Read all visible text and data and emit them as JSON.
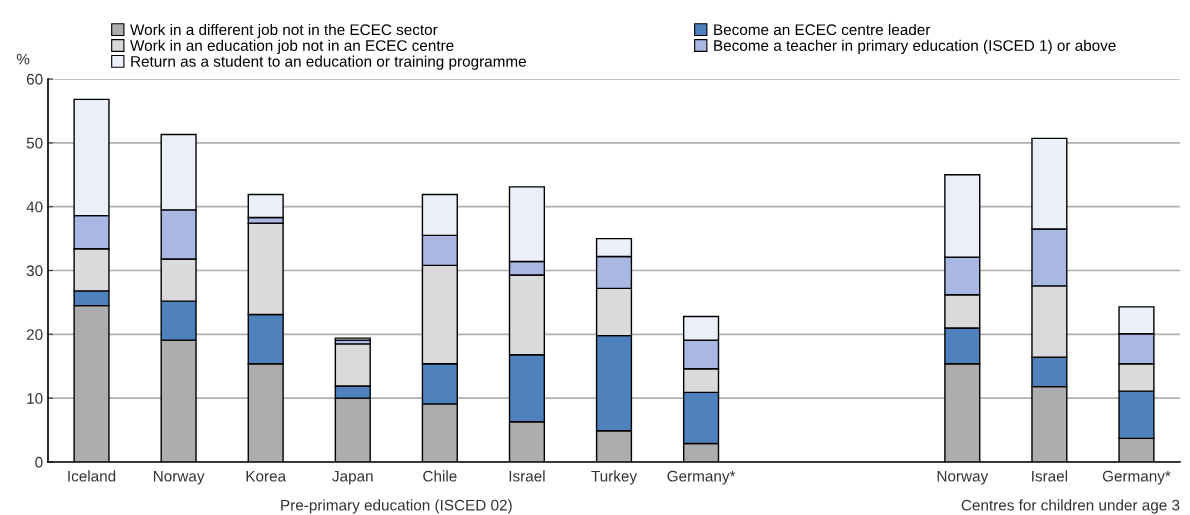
{
  "chart_data": {
    "type": "bar",
    "stacked": true,
    "ylabel": "%",
    "categories": [
      "Iceland",
      "Norway",
      "Korea",
      "Japan",
      "Chile",
      "Israel",
      "Turkey",
      "Germany*",
      null,
      null,
      "Norway",
      "Israel",
      "Germany*"
    ],
    "series": [
      {
        "name": "Work in a different job not in the ECEC sector",
        "color": "#adadad",
        "values": [
          24.5,
          19.1,
          15.4,
          10.0,
          9.1,
          6.3,
          4.9,
          2.9,
          null,
          null,
          15.4,
          11.8,
          3.7
        ]
      },
      {
        "name": "Become an ECEC centre leader",
        "color": "#4f81bd",
        "values": [
          2.3,
          6.1,
          7.7,
          1.9,
          6.3,
          10.5,
          14.9,
          8.0,
          null,
          null,
          5.6,
          4.6,
          7.4
        ]
      },
      {
        "name": "Work in an education job not in an ECEC centre",
        "color": "#dadada",
        "values": [
          6.6,
          6.6,
          14.3,
          6.6,
          15.4,
          12.5,
          7.4,
          3.7,
          null,
          null,
          5.2,
          11.2,
          4.3
        ]
      },
      {
        "name": "Become a teacher in primary education (ISCED 1) or above",
        "color": "#a8b8e2",
        "values": [
          5.2,
          7.7,
          0.9,
          0.6,
          4.7,
          2.1,
          5.0,
          4.5,
          null,
          null,
          5.9,
          8.9,
          4.7
        ]
      },
      {
        "name": "Return as a student to an education or training programme",
        "color": "#ebeff7",
        "values": [
          18.2,
          11.8,
          3.6,
          0.3,
          6.4,
          11.7,
          2.8,
          3.7,
          null,
          null,
          12.9,
          14.2,
          4.2
        ]
      }
    ],
    "ylim": [
      0,
      60
    ],
    "yticks": [
      0,
      10,
      20,
      30,
      40,
      50,
      60
    ],
    "grid": "y",
    "legend": "top",
    "annotations": [
      "Pre-primary education (ISCED 02)",
      "Centres for children under age 3"
    ]
  }
}
